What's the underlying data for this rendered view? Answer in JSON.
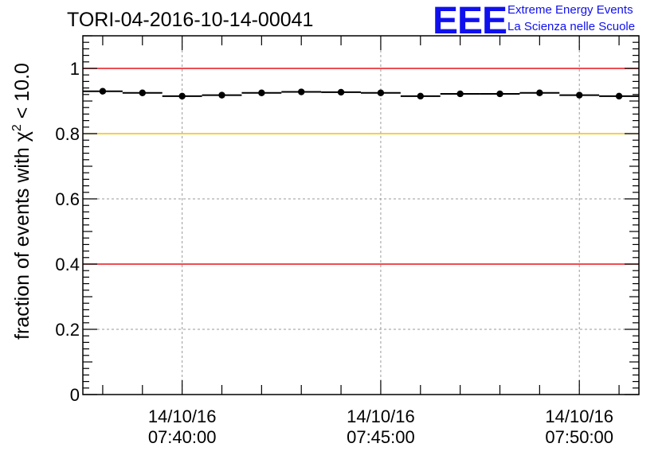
{
  "header": {
    "title": "TORI-04-2016-10-14-00041"
  },
  "branding": {
    "logo": "EEE",
    "line1": "Extreme Energy Events",
    "line2": "La Scienza nelle Scuole",
    "color": "#1010ee"
  },
  "chart_data": {
    "type": "scatter",
    "title": "TORI-04-2016-10-14-00041",
    "xlabel": "",
    "ylabel_prefix": "fraction of events with ",
    "ylabel_symbol": "χ",
    "ylabel_sup": "2",
    "ylabel_suffix": " < 10.0",
    "x_unit": "minutes since 07:35:00",
    "xlim": [
      2.5,
      16.5
    ],
    "ylim": [
      0,
      1.1
    ],
    "grid": true,
    "y_ticks": [
      {
        "value": 0,
        "label": "0"
      },
      {
        "value": 0.2,
        "label": "0.2"
      },
      {
        "value": 0.4,
        "label": "0.4"
      },
      {
        "value": 0.6,
        "label": "0.6"
      },
      {
        "value": 0.8,
        "label": "0.8"
      },
      {
        "value": 1.0,
        "label": "1"
      }
    ],
    "x_ticks": [
      {
        "value": 5,
        "date": "14/10/16",
        "time": "07:40:00"
      },
      {
        "value": 10,
        "date": "14/10/16",
        "time": "07:45:00"
      },
      {
        "value": 15,
        "date": "14/10/16",
        "time": "07:50:00"
      }
    ],
    "reference_lines": [
      {
        "y": 1.0,
        "color": "#e8141a"
      },
      {
        "y": 0.8,
        "color": "#f2c200"
      },
      {
        "y": 0.4,
        "color": "#e8141a"
      }
    ],
    "series": [
      {
        "name": "fraction",
        "bin_width": 1.0,
        "x": [
          3,
          4,
          5,
          6,
          7,
          8,
          9,
          10,
          11,
          12,
          13,
          14,
          15,
          16
        ],
        "y": [
          0.93,
          0.925,
          0.915,
          0.918,
          0.925,
          0.928,
          0.927,
          0.925,
          0.915,
          0.922,
          0.922,
          0.925,
          0.918,
          0.915
        ]
      }
    ]
  }
}
